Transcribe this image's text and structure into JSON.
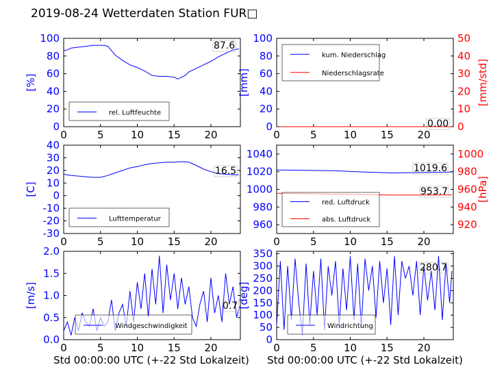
{
  "title": "2019-08-24 Wetterdaten Station FUR□",
  "xlabel": "Std 00:00:00 UTC (+-22 Std Lokalzeit)",
  "colors": {
    "primary": "#0000ff",
    "secondary": "#ff0000",
    "axes": "#000000"
  },
  "chart_data": [
    {
      "type": "line",
      "panel": "humidity",
      "ylabel": "[%]",
      "xlim": [
        0,
        24
      ],
      "ylim": [
        0,
        100
      ],
      "xticks": [
        0,
        5,
        10,
        15,
        20
      ],
      "yticks": [
        0,
        20,
        40,
        60,
        80,
        100
      ],
      "legend_placement": "bottom-left",
      "annotation": "87.6",
      "series": [
        {
          "name": "rel. Luftfeuchte",
          "color": "#0000ff",
          "x": [
            0,
            0.5,
            1,
            2,
            3,
            4,
            5,
            5.5,
            6,
            6.5,
            7,
            8,
            9,
            10,
            11,
            12,
            13,
            14,
            15,
            15.5,
            16,
            16.5,
            17,
            18,
            19,
            20,
            21,
            22,
            23,
            23.8
          ],
          "y": [
            86,
            87,
            89,
            90,
            91,
            92,
            92,
            92,
            91,
            86,
            81,
            75,
            70,
            67,
            63,
            58,
            57,
            57,
            56,
            54,
            56,
            58,
            62,
            66,
            70,
            74,
            79,
            83,
            87,
            88
          ]
        }
      ]
    },
    {
      "type": "line",
      "panel": "precipitation",
      "ylabel": "[mm]",
      "ylabel_right": "[mm/std]",
      "xlim": [
        0,
        24
      ],
      "ylim": [
        0,
        100
      ],
      "ylim_right": [
        0,
        50
      ],
      "xticks": [
        0,
        5,
        10,
        15,
        20
      ],
      "yticks": [
        0,
        20,
        40,
        60,
        80,
        100
      ],
      "yticks_right": [
        0,
        10,
        20,
        30,
        40,
        50
      ],
      "legend_placement": "top-left",
      "annotation": "0.00",
      "series": [
        {
          "name": "kum. Niederschlag",
          "color": "#0000ff",
          "axis": "left",
          "x": [
            0,
            24
          ],
          "y": [
            0,
            0
          ]
        },
        {
          "name": "Niederschlagsrate",
          "color": "#ff0000",
          "axis": "right",
          "x": [
            0,
            24
          ],
          "y": [
            0,
            0
          ]
        }
      ]
    },
    {
      "type": "line",
      "panel": "temperature",
      "ylabel": "[C]",
      "xlim": [
        0,
        24
      ],
      "ylim": [
        -30,
        40
      ],
      "xticks": [
        0,
        5,
        10,
        15,
        20
      ],
      "yticks": [
        -30,
        -20,
        -10,
        0,
        10,
        20,
        30,
        40
      ],
      "legend_placement": "bottom-left",
      "annotation": "16.5",
      "series": [
        {
          "name": "Lufttemperatur",
          "color": "#0000ff",
          "x": [
            0,
            1,
            2,
            3,
            4,
            5,
            6,
            7,
            8,
            9,
            10,
            11,
            12,
            13,
            14,
            15,
            16,
            17,
            18,
            19,
            20,
            21,
            22,
            23,
            23.8
          ],
          "y": [
            17,
            16,
            15.5,
            15,
            14.5,
            14.5,
            16,
            18,
            20,
            22,
            23,
            24.5,
            25.5,
            26,
            26.5,
            26.5,
            27,
            26.5,
            24,
            21,
            19,
            17.5,
            17,
            16.5,
            16.5
          ]
        }
      ]
    },
    {
      "type": "line",
      "panel": "pressure",
      "ylabel_right": "[hPa]",
      "xlim": [
        0,
        24
      ],
      "ylim": [
        950,
        1050
      ],
      "ylim_right": [
        910,
        1010
      ],
      "xticks": [
        0,
        5,
        10,
        15,
        20
      ],
      "yticks": [
        960,
        980,
        1000,
        1020,
        1040
      ],
      "yticks_right": [
        920,
        940,
        960,
        980,
        1000
      ],
      "legend_placement": "bottom-left",
      "annotations": [
        "1019.6",
        "953.7"
      ],
      "series": [
        {
          "name": "red. Luftdruck",
          "color": "#0000ff",
          "axis": "left",
          "x": [
            0,
            4,
            8,
            12,
            16,
            20,
            23.8
          ],
          "y": [
            1022,
            1021.5,
            1021,
            1019.5,
            1018.5,
            1019.2,
            1019.6
          ]
        },
        {
          "name": "abs. Luftdruck",
          "color": "#ff0000",
          "axis": "right",
          "x": [
            0,
            4,
            8,
            12,
            16,
            20,
            23.8
          ],
          "y": [
            955.5,
            955,
            954.5,
            954,
            953.5,
            953.6,
            953.7
          ]
        }
      ]
    },
    {
      "type": "line",
      "panel": "wind-speed",
      "ylabel": "[m/s]",
      "xlim": [
        0,
        24
      ],
      "ylim": [
        0,
        2
      ],
      "xticks": [
        0,
        5,
        10,
        15,
        20
      ],
      "yticks": [
        0,
        0.5,
        1.0,
        1.5,
        2.0
      ],
      "ytick_labels": [
        "0.0",
        "0.5",
        "1.0",
        "1.5",
        "2.0"
      ],
      "legend_placement": "bottom-left",
      "annotation": "0.7",
      "series": [
        {
          "name": "Windgeschwindigkeit",
          "color": "#0000ff",
          "x": [
            0,
            0.5,
            1,
            1.5,
            2,
            2.5,
            3,
            3.5,
            4,
            4.5,
            5,
            5.5,
            6,
            6.5,
            7,
            7.5,
            8,
            8.5,
            9,
            9.5,
            10,
            10.5,
            11,
            11.5,
            12,
            12.5,
            13,
            13.5,
            14,
            14.5,
            15,
            15.5,
            16,
            16.5,
            17,
            17.5,
            18,
            18.5,
            19,
            19.5,
            20,
            20.5,
            21,
            21.5,
            22,
            22.5,
            23,
            23.5,
            23.8
          ],
          "y": [
            0.2,
            0.4,
            0.1,
            0.5,
            0.2,
            0.6,
            0.4,
            0.3,
            0.7,
            0.2,
            0.5,
            0.3,
            0.4,
            0.9,
            0.2,
            0.6,
            0.8,
            0.3,
            1.1,
            0.4,
            1.3,
            0.7,
            1.5,
            0.5,
            1.6,
            0.8,
            1.9,
            0.6,
            1.7,
            0.9,
            1.5,
            0.7,
            1.4,
            0.8,
            1.2,
            0.5,
            0.3,
            0.8,
            1.1,
            0.4,
            1.4,
            0.6,
            1.0,
            0.4,
            1.5,
            0.8,
            1.2,
            0.5,
            0.7
          ]
        }
      ]
    },
    {
      "type": "line",
      "panel": "wind-direction",
      "ylabel": "[deg]",
      "xlim": [
        0,
        24
      ],
      "ylim": [
        0,
        360
      ],
      "xticks": [
        0,
        5,
        10,
        15,
        20
      ],
      "yticks": [
        0,
        50,
        100,
        150,
        200,
        250,
        300,
        350
      ],
      "legend_placement": "bottom-left",
      "annotation": "280.7",
      "series": [
        {
          "name": "Windrichtung",
          "color": "#0000ff",
          "x": [
            0,
            0.5,
            1,
            1.5,
            2,
            2.5,
            3,
            3.5,
            4,
            4.5,
            5,
            5.5,
            6,
            6.5,
            7,
            7.5,
            8,
            8.5,
            9,
            9.5,
            10,
            10.5,
            11,
            11.5,
            12,
            12.5,
            13,
            13.5,
            14,
            14.5,
            15,
            15.5,
            16,
            16.5,
            17,
            17.5,
            18,
            18.5,
            19,
            19.5,
            20,
            20.5,
            21,
            21.5,
            22,
            22.5,
            23,
            23.5,
            23.8
          ],
          "y": [
            60,
            320,
            40,
            300,
            80,
            330,
            150,
            20,
            310,
            60,
            280,
            100,
            330,
            40,
            300,
            180,
            320,
            60,
            290,
            120,
            340,
            80,
            310,
            50,
            330,
            200,
            300,
            90,
            320,
            150,
            290,
            60,
            340,
            100,
            320,
            250,
            300,
            180,
            320,
            100,
            300,
            160,
            280,
            120,
            340,
            80,
            310,
            150,
            280
          ]
        }
      ]
    }
  ]
}
